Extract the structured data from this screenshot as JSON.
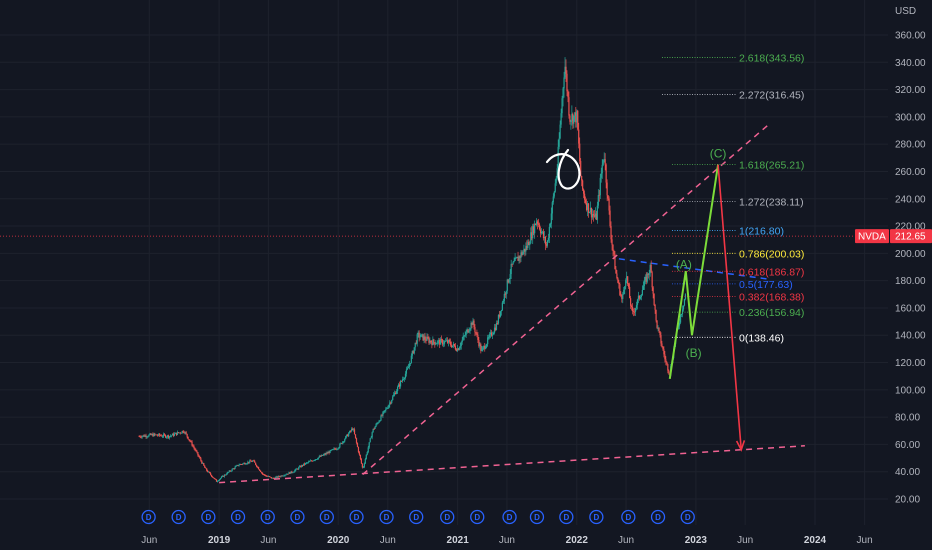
{
  "chart_data": {
    "type": "candlestick",
    "symbol": "NVDA",
    "currency": "USD",
    "last_price": "212.65",
    "ylim": [
      15,
      370
    ],
    "y_ticks": [
      "360.00",
      "340.00",
      "320.00",
      "300.00",
      "280.00",
      "260.00",
      "240.00",
      "220.00",
      "200.00",
      "180.00",
      "160.00",
      "140.00",
      "120.00",
      "100.00",
      "80.00",
      "60.00",
      "40.00",
      "20.00"
    ],
    "x_ticks": [
      {
        "label": "Jun",
        "date": "2018-06-01",
        "year": false
      },
      {
        "label": "2019",
        "date": "2019-01-01",
        "year": true
      },
      {
        "label": "Jun",
        "date": "2019-06-01",
        "year": false
      },
      {
        "label": "2020",
        "date": "2020-01-01",
        "year": true
      },
      {
        "label": "Jun",
        "date": "2020-06-01",
        "year": false
      },
      {
        "label": "2021",
        "date": "2021-01-01",
        "year": true
      },
      {
        "label": "Jun",
        "date": "2021-06-01",
        "year": false
      },
      {
        "label": "2022",
        "date": "2022-01-01",
        "year": true
      },
      {
        "label": "Jun",
        "date": "2022-06-01",
        "year": false
      },
      {
        "label": "2023",
        "date": "2023-01-01",
        "year": true
      },
      {
        "label": "Jun",
        "date": "2023-06-01",
        "year": false
      },
      {
        "label": "2024",
        "date": "2024-01-01",
        "year": true
      },
      {
        "label": "Jun",
        "date": "2024-06-01",
        "year": false
      }
    ],
    "price_path": [
      [
        "2018-05-01",
        66
      ],
      [
        "2018-06-15",
        67
      ],
      [
        "2018-08-01",
        66
      ],
      [
        "2018-09-15",
        70
      ],
      [
        "2018-10-10",
        60
      ],
      [
        "2018-11-20",
        42
      ],
      [
        "2018-12-24",
        33
      ],
      [
        "2019-01-20",
        38
      ],
      [
        "2019-03-01",
        45
      ],
      [
        "2019-04-15",
        48
      ],
      [
        "2019-05-15",
        38
      ],
      [
        "2019-06-15",
        35
      ],
      [
        "2019-08-15",
        40
      ],
      [
        "2019-09-15",
        45
      ],
      [
        "2019-11-15",
        52
      ],
      [
        "2020-01-01",
        58
      ],
      [
        "2020-02-15",
        72
      ],
      [
        "2020-03-16",
        42
      ],
      [
        "2020-04-15",
        70
      ],
      [
        "2020-06-01",
        88
      ],
      [
        "2020-08-01",
        115
      ],
      [
        "2020-09-01",
        140
      ],
      [
        "2020-10-15",
        135
      ],
      [
        "2020-12-01",
        135
      ],
      [
        "2021-01-01",
        130
      ],
      [
        "2021-02-15",
        150
      ],
      [
        "2021-03-15",
        128
      ],
      [
        "2021-05-01",
        148
      ],
      [
        "2021-06-15",
        190
      ],
      [
        "2021-08-01",
        205
      ],
      [
        "2021-09-01",
        225
      ],
      [
        "2021-10-01",
        205
      ],
      [
        "2021-11-01",
        260
      ],
      [
        "2021-11-25",
        340
      ],
      [
        "2021-12-10",
        300
      ],
      [
        "2022-01-01",
        300
      ],
      [
        "2022-01-15",
        250
      ],
      [
        "2022-02-01",
        235
      ],
      [
        "2022-03-01",
        225
      ],
      [
        "2022-03-25",
        275
      ],
      [
        "2022-04-15",
        215
      ],
      [
        "2022-05-01",
        185
      ],
      [
        "2022-05-20",
        165
      ],
      [
        "2022-06-01",
        185
      ],
      [
        "2022-06-20",
        155
      ],
      [
        "2022-07-15",
        170
      ],
      [
        "2022-08-15",
        190
      ],
      [
        "2022-09-01",
        150
      ],
      [
        "2022-10-01",
        120
      ],
      [
        "2022-10-13",
        112
      ],
      [
        "2022-11-01",
        140
      ],
      [
        "2022-11-30",
        170
      ]
    ],
    "fib_levels": [
      {
        "label": "2.618(343.56)",
        "value": 343.56,
        "color": "#4caf50"
      },
      {
        "label": "2.272(316.45)",
        "value": 316.45,
        "color": "#b2b5be"
      },
      {
        "label": "1.618(265.21)",
        "value": 265.21,
        "color": "#4caf50"
      },
      {
        "label": "1.272(238.11)",
        "value": 238.11,
        "color": "#b2b5be"
      },
      {
        "label": "1(216.80)",
        "value": 216.8,
        "color": "#42a5f5"
      },
      {
        "label": "0.786(200.03)",
        "value": 200.03,
        "color": "#ffeb3b"
      },
      {
        "label": "0.618(186.87)",
        "value": 186.87,
        "color": "#f23645"
      },
      {
        "label": "0.5(177.63)",
        "value": 177.63,
        "color": "#2962ff"
      },
      {
        "label": "0.382(168.38)",
        "value": 168.38,
        "color": "#f23645"
      },
      {
        "label": "0.236(156.94)",
        "value": 156.94,
        "color": "#4caf50"
      },
      {
        "label": "0(138.46)",
        "value": 138.46,
        "color": "#ffffff"
      }
    ],
    "wave_path": [
      [
        "2022-10-13",
        108
      ],
      [
        "2022-12-01",
        187
      ],
      [
        "2022-12-20",
        140
      ],
      [
        "2023-03-10",
        265
      ]
    ],
    "wave_labels": [
      {
        "label": "(A)",
        "date": "2022-11-25",
        "value": 192
      },
      {
        "label": "(B)",
        "date": "2022-12-25",
        "value": 127
      },
      {
        "label": "(C)",
        "date": "2023-03-10",
        "value": 273
      }
    ],
    "projection": {
      "from": [
        "2023-03-10",
        265
      ],
      "to": [
        "2023-05-20",
        56
      ]
    },
    "trendlines": [
      {
        "from": [
          "2019-01-01",
          32
        ],
        "to": [
          "2023-12-01",
          59
        ],
        "color": "#f06292"
      },
      {
        "from": [
          "2020-03-16",
          38
        ],
        "to": [
          "2023-08-15",
          295
        ],
        "color": "#f06292"
      },
      {
        "from": [
          "2022-05-10",
          196
        ],
        "to": [
          "2023-08-15",
          181
        ],
        "color": "#2962ff"
      }
    ],
    "dividend_marker": "D",
    "dividend_dates": [
      "2018-05-30",
      "2018-08-30",
      "2018-11-29",
      "2019-02-28",
      "2019-05-30",
      "2019-08-29",
      "2019-11-27",
      "2020-02-26",
      "2020-05-28",
      "2020-08-27",
      "2020-11-30",
      "2021-03-02",
      "2021-06-09",
      "2021-09-01",
      "2021-11-30",
      "2022-03-02",
      "2022-06-08",
      "2022-09-07",
      "2022-12-07"
    ]
  }
}
